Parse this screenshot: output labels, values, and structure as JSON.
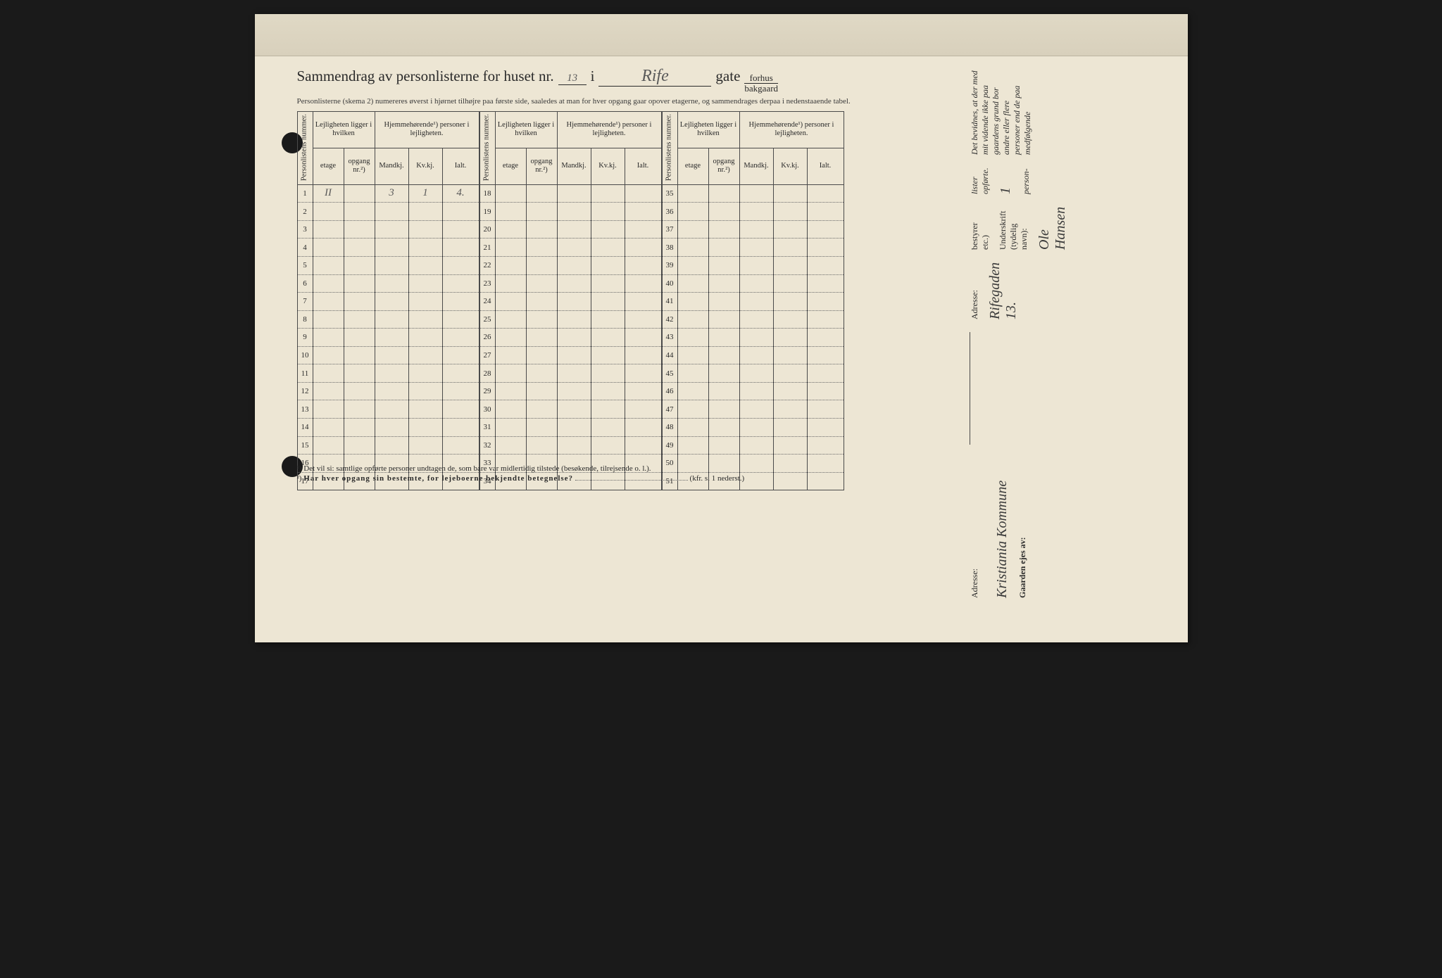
{
  "title": {
    "prefix": "Sammendrag av personlisterne for huset nr.",
    "house_nr": "13",
    "word_i": "i",
    "street": "Rife",
    "word_gate": "gate",
    "fraction_top": "forhus",
    "fraction_bottom": "bakgaard"
  },
  "subtitle": "Personlisterne (skema 2) numereres øverst i hjørnet tilhøjre paa første side, saaledes at man for hver opgang gaar opover etagerne, og sammendrages derpaa i nedenstaaende tabel.",
  "columns": {
    "personlistens_nummer": "Personlistens nummer.",
    "lej_hvilken": "Lejligheten ligger i hvilken",
    "etage": "etage",
    "opgang": "opgang nr.²)",
    "hjemme": "Hjemmehørende¹) personer i lejligheten.",
    "mandkj": "Mandkj.",
    "kvkj": "Kv.kj.",
    "ialt": "Ialt."
  },
  "blocks": [
    {
      "start": 1,
      "end": 17
    },
    {
      "start": 18,
      "end": 34
    },
    {
      "start": 35,
      "end": 51
    }
  ],
  "entries": {
    "1": {
      "etage": "II",
      "opgang": "",
      "mandkj": "3",
      "kvkj": "1",
      "ialt": "4."
    }
  },
  "footnotes": {
    "f1": "¹)  Det vil si: samtlige opførte personer undtagen de, som bare var midlertidig tilstede (besøkende, tilrejsende o. l.).",
    "f2_label": "²)",
    "f2_text": "Har hver opgang sin bestemte, for lejeboerne bekjendte betegnelse?",
    "f2_suffix": "(kfr. s. 1 nederst.)"
  },
  "right": {
    "bevidnes": "Det bevidnes, at der med mit vidende ikke paa gaardens grund bor andre eller flere personer end de paa medfølgende",
    "lister": "lister opførte.",
    "count_suffix": "person-",
    "underskrift_label": "Underskrift (tydelig navn):",
    "underskrift": "Ole Hansen",
    "bestyrer": "bestyrer etc.)",
    "adresse_label": "Adresse:",
    "adresse": "Rifegaden 13.",
    "gaarden_label": "Gaarden ejes av:",
    "gaarden": "Kristiania Kommune",
    "adresse2_label": "Adresse:"
  },
  "styling": {
    "paper_color": "#ede6d4",
    "ink_color": "#2a2a2a",
    "rule_color": "#4a4a4a",
    "handwriting_color": "#5a5a5a",
    "title_fontsize": 21,
    "body_fontsize": 11,
    "col_widths": {
      "num": 22,
      "etage": 44,
      "opgang": 44,
      "m": 48,
      "k": 48,
      "i": 52
    }
  }
}
